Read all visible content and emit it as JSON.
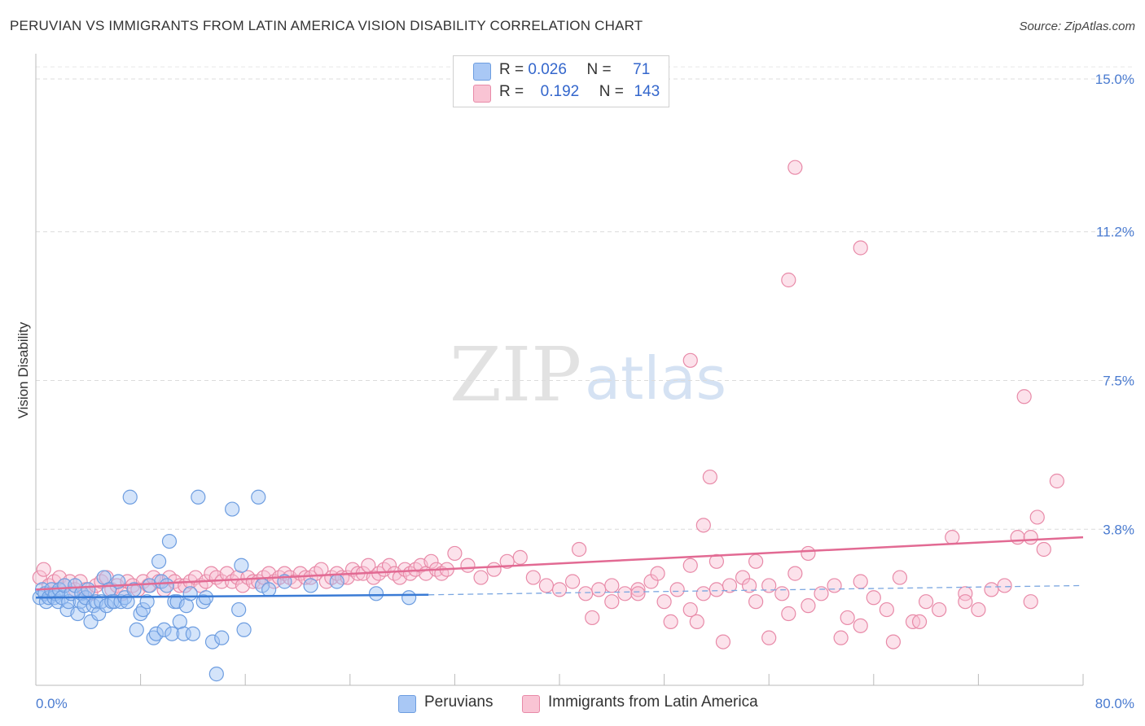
{
  "title": "PERUVIAN VS IMMIGRANTS FROM LATIN AMERICA VISION DISABILITY CORRELATION CHART",
  "source": "Source: ZipAtlas.com",
  "watermark": {
    "zip": "ZIP",
    "atlas": "atlas"
  },
  "legend": [
    {
      "r_label": "R =",
      "r_value": "0.026",
      "n_label": "N =",
      "n_value": "71",
      "color": "#a9c8f5",
      "border": "#6d9de0"
    },
    {
      "r_label": "R =",
      "r_value": "0.192",
      "n_label": "N =",
      "n_value": "143",
      "color": "#f9c4d4",
      "border": "#e88aa8"
    }
  ],
  "bottom_legend": [
    "Peruvians",
    "Immigrants from Latin America"
  ],
  "chart_data": {
    "type": "scatter",
    "title": "PERUVIAN VS IMMIGRANTS FROM LATIN AMERICA VISION DISABILITY CORRELATION CHART",
    "xlabel": "",
    "ylabel": "Vision Disability",
    "xlim": [
      0,
      80
    ],
    "ylim": [
      0,
      15.3
    ],
    "x_tick_labels": [
      "0.0%",
      "80.0%"
    ],
    "y_ticks": [
      3.8,
      7.5,
      11.2,
      15.0
    ],
    "y_tick_labels": [
      "3.8%",
      "7.5%",
      "11.2%",
      "15.0%"
    ],
    "series": [
      {
        "name": "Peruvians",
        "color": "#6d9de0",
        "fill": "rgba(160,195,245,0.45)",
        "trend": {
          "x0": 0,
          "y0": 2.1,
          "x1": 30,
          "y1": 2.17,
          "dash_x1": 80,
          "dash_y1": 2.4
        },
        "points": [
          [
            0.3,
            2.1
          ],
          [
            0.5,
            2.3
          ],
          [
            0.7,
            2.2
          ],
          [
            0.8,
            2.0
          ],
          [
            1.0,
            2.1
          ],
          [
            1.2,
            2.3
          ],
          [
            1.4,
            2.1
          ],
          [
            1.5,
            2.2
          ],
          [
            1.7,
            2.0
          ],
          [
            1.8,
            2.3
          ],
          [
            2.0,
            2.1
          ],
          [
            2.2,
            2.4
          ],
          [
            2.4,
            1.8
          ],
          [
            2.5,
            2.0
          ],
          [
            2.7,
            2.2
          ],
          [
            3.0,
            2.4
          ],
          [
            3.2,
            1.7
          ],
          [
            3.4,
            2.0
          ],
          [
            3.5,
            2.2
          ],
          [
            3.7,
            1.9
          ],
          [
            3.8,
            2.1
          ],
          [
            4.0,
            2.3
          ],
          [
            4.2,
            1.5
          ],
          [
            4.4,
            1.9
          ],
          [
            4.6,
            2.0
          ],
          [
            4.8,
            1.7
          ],
          [
            5.0,
            2.0
          ],
          [
            5.2,
            2.6
          ],
          [
            5.4,
            1.9
          ],
          [
            5.6,
            2.3
          ],
          [
            5.8,
            2.0
          ],
          [
            6.0,
            2.0
          ],
          [
            6.3,
            2.5
          ],
          [
            6.5,
            2.0
          ],
          [
            6.8,
            2.1
          ],
          [
            7.0,
            2.0
          ],
          [
            7.2,
            4.6
          ],
          [
            7.5,
            2.3
          ],
          [
            7.7,
            1.3
          ],
          [
            8.0,
            1.7
          ],
          [
            8.2,
            1.8
          ],
          [
            8.5,
            2.0
          ],
          [
            8.7,
            2.4
          ],
          [
            9.0,
            1.1
          ],
          [
            9.2,
            1.2
          ],
          [
            9.4,
            3.0
          ],
          [
            9.6,
            2.5
          ],
          [
            9.8,
            1.3
          ],
          [
            10.0,
            2.4
          ],
          [
            10.2,
            3.5
          ],
          [
            10.4,
            1.2
          ],
          [
            10.6,
            2.0
          ],
          [
            10.8,
            2.0
          ],
          [
            11.0,
            1.5
          ],
          [
            11.3,
            1.2
          ],
          [
            11.5,
            1.9
          ],
          [
            11.8,
            2.2
          ],
          [
            12.0,
            1.2
          ],
          [
            12.4,
            4.6
          ],
          [
            12.8,
            2.0
          ],
          [
            13.0,
            2.1
          ],
          [
            13.5,
            1.0
          ],
          [
            13.8,
            0.2
          ],
          [
            14.2,
            1.1
          ],
          [
            15.0,
            4.3
          ],
          [
            15.5,
            1.8
          ],
          [
            15.7,
            2.9
          ],
          [
            15.9,
            1.3
          ],
          [
            17.0,
            4.6
          ],
          [
            17.3,
            2.4
          ],
          [
            17.8,
            2.3
          ],
          [
            19.0,
            2.5
          ],
          [
            21.0,
            2.4
          ],
          [
            23.0,
            2.5
          ],
          [
            26.0,
            2.2
          ],
          [
            28.5,
            2.1
          ]
        ]
      },
      {
        "name": "Immigrants from Latin America",
        "color": "#e88aa8",
        "fill": "rgba(248,190,210,0.45)",
        "trend": {
          "x0": 0,
          "y0": 2.3,
          "x1": 80,
          "y1": 3.6
        },
        "points": [
          [
            0.3,
            2.6
          ],
          [
            0.6,
            2.8
          ],
          [
            1.0,
            2.4
          ],
          [
            1.4,
            2.5
          ],
          [
            1.8,
            2.6
          ],
          [
            2.2,
            2.4
          ],
          [
            2.6,
            2.5
          ],
          [
            3.0,
            2.3
          ],
          [
            3.4,
            2.5
          ],
          [
            3.8,
            2.3
          ],
          [
            4.2,
            2.2
          ],
          [
            4.6,
            2.4
          ],
          [
            5.0,
            2.5
          ],
          [
            5.4,
            2.6
          ],
          [
            5.8,
            2.3
          ],
          [
            6.2,
            2.4
          ],
          [
            6.6,
            2.2
          ],
          [
            7.0,
            2.5
          ],
          [
            7.4,
            2.4
          ],
          [
            7.8,
            2.3
          ],
          [
            8.2,
            2.5
          ],
          [
            8.6,
            2.4
          ],
          [
            9.0,
            2.6
          ],
          [
            9.4,
            2.5
          ],
          [
            9.8,
            2.3
          ],
          [
            10.2,
            2.6
          ],
          [
            10.6,
            2.5
          ],
          [
            11.0,
            2.4
          ],
          [
            11.4,
            2.4
          ],
          [
            11.8,
            2.5
          ],
          [
            12.2,
            2.6
          ],
          [
            12.6,
            2.4
          ],
          [
            13.0,
            2.5
          ],
          [
            13.4,
            2.7
          ],
          [
            13.8,
            2.6
          ],
          [
            14.2,
            2.5
          ],
          [
            14.6,
            2.7
          ],
          [
            15.0,
            2.5
          ],
          [
            15.4,
            2.6
          ],
          [
            15.8,
            2.4
          ],
          [
            16.2,
            2.6
          ],
          [
            16.6,
            2.5
          ],
          [
            17.0,
            2.5
          ],
          [
            17.4,
            2.6
          ],
          [
            17.8,
            2.7
          ],
          [
            18.2,
            2.5
          ],
          [
            18.6,
            2.6
          ],
          [
            19.0,
            2.7
          ],
          [
            19.4,
            2.6
          ],
          [
            19.8,
            2.5
          ],
          [
            20.2,
            2.7
          ],
          [
            20.6,
            2.6
          ],
          [
            21.0,
            2.6
          ],
          [
            21.4,
            2.7
          ],
          [
            21.8,
            2.8
          ],
          [
            22.2,
            2.5
          ],
          [
            22.6,
            2.6
          ],
          [
            23.0,
            2.7
          ],
          [
            23.4,
            2.6
          ],
          [
            23.8,
            2.6
          ],
          [
            24.2,
            2.8
          ],
          [
            24.6,
            2.7
          ],
          [
            25.0,
            2.7
          ],
          [
            25.4,
            2.9
          ],
          [
            25.8,
            2.6
          ],
          [
            26.2,
            2.7
          ],
          [
            26.6,
            2.8
          ],
          [
            27.0,
            2.9
          ],
          [
            27.4,
            2.7
          ],
          [
            27.8,
            2.6
          ],
          [
            28.2,
            2.8
          ],
          [
            28.6,
            2.7
          ],
          [
            29.0,
            2.8
          ],
          [
            29.4,
            2.9
          ],
          [
            29.8,
            2.7
          ],
          [
            30.2,
            3.0
          ],
          [
            30.6,
            2.8
          ],
          [
            31.0,
            2.7
          ],
          [
            31.4,
            2.8
          ],
          [
            32.0,
            3.2
          ],
          [
            33.0,
            2.9
          ],
          [
            34.0,
            2.6
          ],
          [
            35.0,
            2.8
          ],
          [
            36.0,
            3.0
          ],
          [
            37.0,
            3.1
          ],
          [
            38.0,
            2.6
          ],
          [
            39.0,
            2.4
          ],
          [
            40.0,
            2.3
          ],
          [
            41.0,
            2.5
          ],
          [
            42.0,
            2.2
          ],
          [
            43.0,
            2.3
          ],
          [
            44.0,
            2.4
          ],
          [
            45.0,
            2.2
          ],
          [
            46.0,
            2.3
          ],
          [
            47.0,
            2.5
          ],
          [
            48.0,
            2.0
          ],
          [
            49.0,
            2.3
          ],
          [
            50.0,
            1.8
          ],
          [
            51.0,
            2.2
          ],
          [
            52.0,
            3.0
          ],
          [
            53.0,
            2.4
          ],
          [
            54.0,
            2.6
          ],
          [
            55.0,
            2.0
          ],
          [
            56.0,
            2.4
          ],
          [
            57.0,
            2.2
          ],
          [
            58.0,
            2.7
          ],
          [
            59.0,
            1.9
          ],
          [
            60.0,
            2.2
          ],
          [
            61.0,
            2.4
          ],
          [
            62.0,
            1.6
          ],
          [
            63.0,
            2.5
          ],
          [
            64.0,
            2.1
          ],
          [
            65.0,
            1.8
          ],
          [
            66.0,
            2.6
          ],
          [
            67.0,
            1.5
          ],
          [
            68.0,
            2.0
          ],
          [
            69.0,
            1.8
          ],
          [
            70.0,
            3.6
          ],
          [
            71.0,
            2.2
          ],
          [
            72.0,
            1.8
          ],
          [
            73.0,
            2.3
          ],
          [
            74.0,
            2.4
          ],
          [
            75.0,
            3.6
          ],
          [
            76.0,
            2.0
          ],
          [
            77.0,
            3.3
          ],
          [
            78.0,
            5.0
          ],
          [
            48.5,
            1.5
          ],
          [
            50.5,
            1.5
          ],
          [
            52.5,
            1.0
          ],
          [
            54.5,
            2.4
          ],
          [
            56.0,
            1.1
          ],
          [
            57.5,
            1.7
          ],
          [
            59.0,
            3.2
          ],
          [
            61.5,
            1.1
          ],
          [
            63.0,
            1.4
          ],
          [
            65.5,
            1.0
          ],
          [
            67.5,
            1.5
          ],
          [
            71.0,
            2.0
          ],
          [
            41.5,
            3.3
          ],
          [
            42.5,
            1.6
          ],
          [
            44.0,
            2.0
          ],
          [
            46.0,
            2.2
          ],
          [
            47.5,
            2.7
          ],
          [
            50.0,
            2.9
          ],
          [
            51.0,
            3.9
          ],
          [
            55.0,
            3.0
          ],
          [
            57.5,
            10.0
          ],
          [
            58.0,
            12.8
          ],
          [
            63.0,
            10.8
          ],
          [
            75.5,
            7.1
          ],
          [
            76.0,
            3.6
          ],
          [
            51.5,
            5.1
          ],
          [
            76.5,
            4.1
          ],
          [
            50.0,
            8.0
          ],
          [
            52.0,
            2.3
          ]
        ]
      }
    ]
  }
}
